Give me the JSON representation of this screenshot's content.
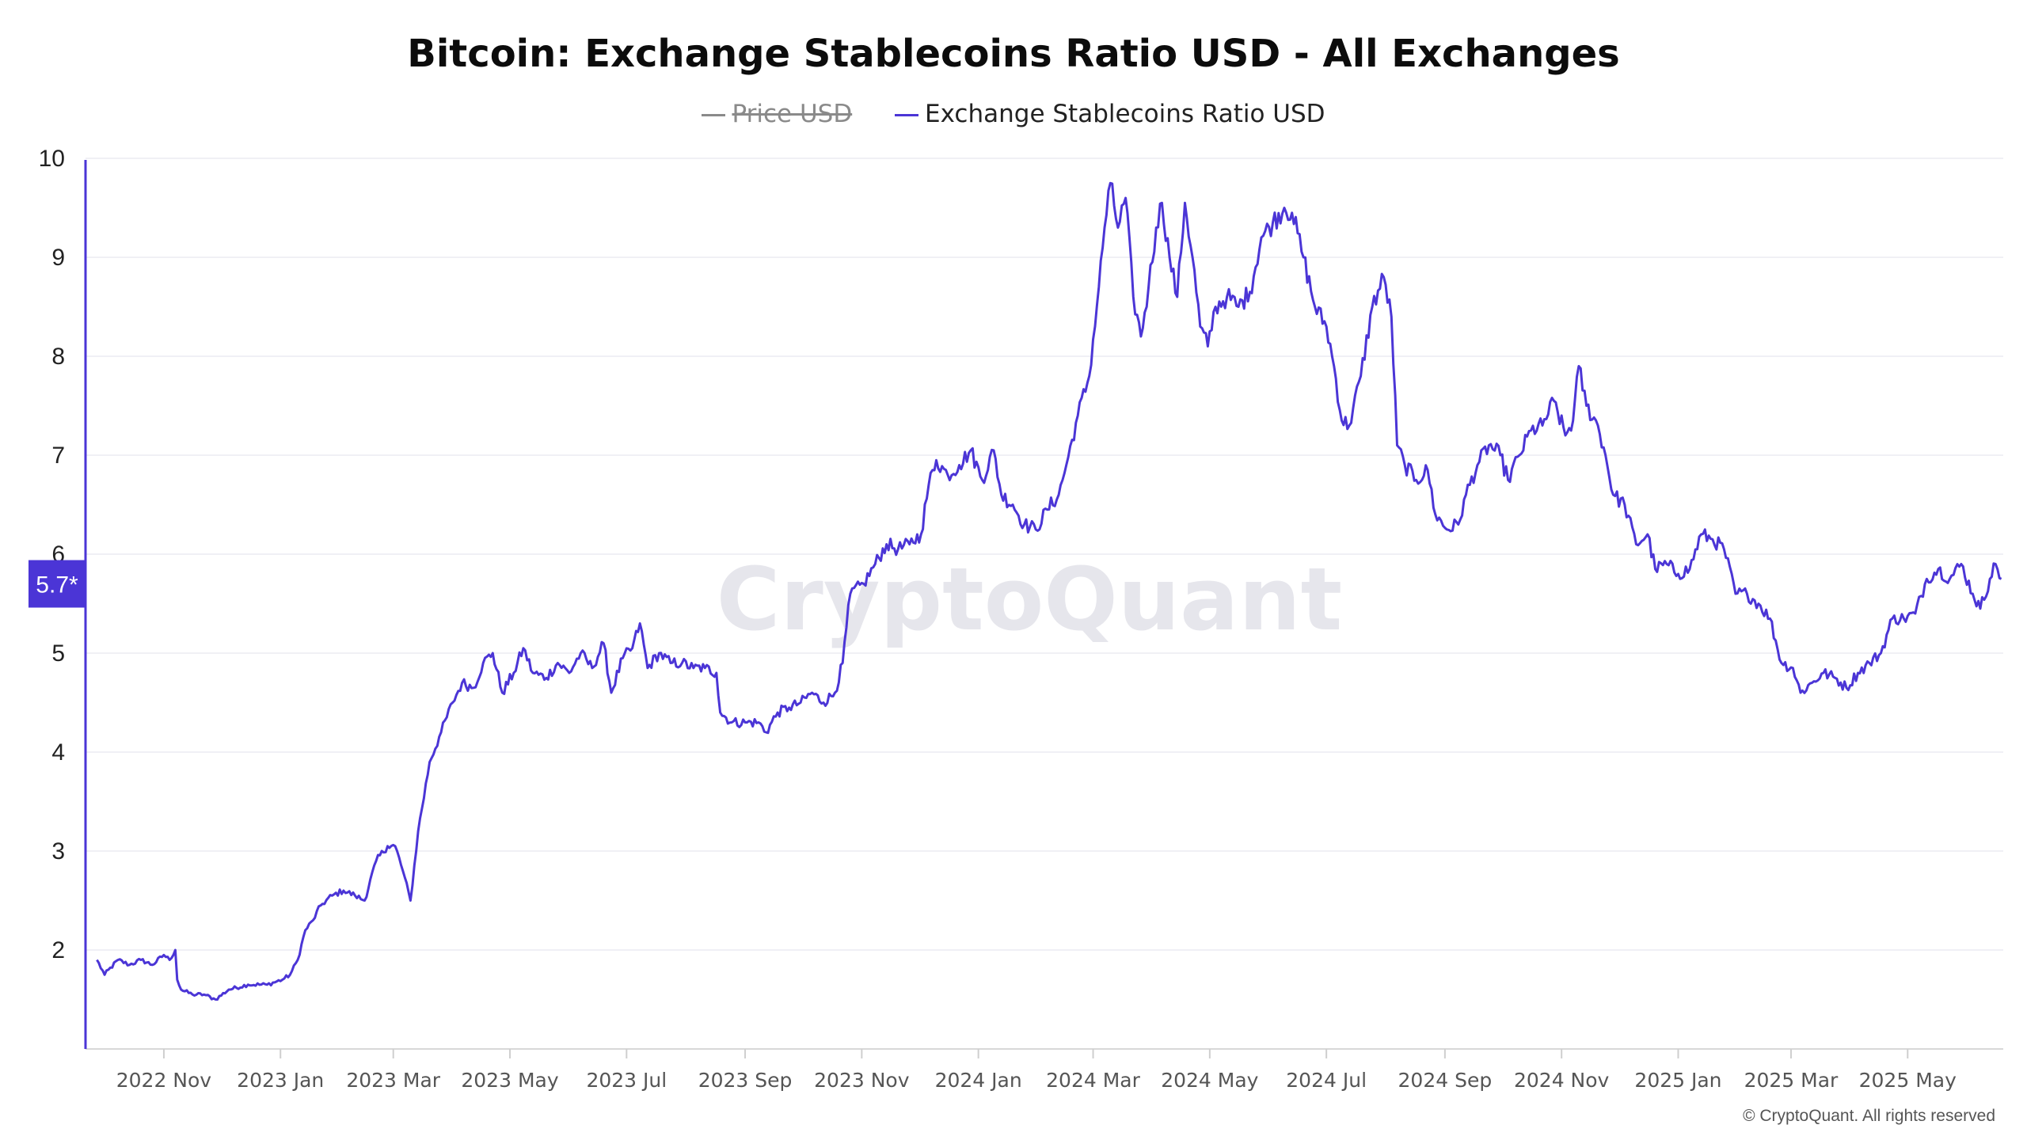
{
  "header": {
    "title": "Bitcoin: Exchange Stablecoins Ratio USD - All Exchanges"
  },
  "legend": [
    {
      "label": "Price USD",
      "color": "#8a8a8a",
      "hidden": true
    },
    {
      "label": "Exchange Stablecoins Ratio USD",
      "color": "#4b35d6",
      "hidden": false
    }
  ],
  "badge": {
    "value_label": "5.7*",
    "value": 5.7,
    "color": "#4b35d6"
  },
  "watermark": "CryptoQuant",
  "footer": {
    "copyright": "© CryptoQuant. All rights reserved"
  },
  "chart_data": {
    "type": "line",
    "title": "Bitcoin: Exchange Stablecoins Ratio USD - All Exchanges",
    "xlabel": "",
    "ylabel": "",
    "ylim": [
      1,
      10
    ],
    "yticks": [
      2,
      3,
      4,
      5,
      6,
      7,
      8,
      9,
      10
    ],
    "xlim": [
      "2022-09-26",
      "2025-06-20"
    ],
    "x_tick_labels": [
      "2022 Nov",
      "2023 Jan",
      "2023 Mar",
      "2023 May",
      "2023 Jul",
      "2023 Sep",
      "2023 Nov",
      "2024 Jan",
      "2024 Mar",
      "2024 May",
      "2024 Jul",
      "2024 Sep",
      "2024 Nov",
      "2025 Jan",
      "2025 Mar",
      "2025 May"
    ],
    "x_tick_dates": [
      "2022-11-01",
      "2023-01-01",
      "2023-03-01",
      "2023-05-01",
      "2023-07-01",
      "2023-09-01",
      "2023-11-01",
      "2024-01-01",
      "2024-03-01",
      "2024-05-01",
      "2024-07-01",
      "2024-09-01",
      "2024-11-01",
      "2025-01-01",
      "2025-03-01",
      "2025-05-01"
    ],
    "grid": true,
    "legend_position": "top-center",
    "series": [
      {
        "name": "Exchange Stablecoins Ratio USD",
        "color": "#4b35d6",
        "points": [
          [
            "2022-09-27",
            1.9
          ],
          [
            "2022-10-01",
            1.75
          ],
          [
            "2022-10-08",
            1.9
          ],
          [
            "2022-10-14",
            1.85
          ],
          [
            "2022-10-20",
            1.9
          ],
          [
            "2022-10-26",
            1.85
          ],
          [
            "2022-11-01",
            1.95
          ],
          [
            "2022-11-04",
            1.9
          ],
          [
            "2022-11-07",
            2.0
          ],
          [
            "2022-11-08",
            1.7
          ],
          [
            "2022-11-10",
            1.6
          ],
          [
            "2022-11-16",
            1.55
          ],
          [
            "2022-11-22",
            1.55
          ],
          [
            "2022-11-28",
            1.5
          ],
          [
            "2022-12-05",
            1.6
          ],
          [
            "2022-12-15",
            1.65
          ],
          [
            "2022-12-25",
            1.65
          ],
          [
            "2023-01-02",
            1.7
          ],
          [
            "2023-01-06",
            1.75
          ],
          [
            "2023-01-10",
            1.9
          ],
          [
            "2023-01-14",
            2.2
          ],
          [
            "2023-01-18",
            2.3
          ],
          [
            "2023-01-22",
            2.45
          ],
          [
            "2023-01-28",
            2.55
          ],
          [
            "2023-02-03",
            2.6
          ],
          [
            "2023-02-09",
            2.55
          ],
          [
            "2023-02-14",
            2.5
          ],
          [
            "2023-02-20",
            2.9
          ],
          [
            "2023-02-26",
            3.05
          ],
          [
            "2023-03-02",
            3.05
          ],
          [
            "2023-03-06",
            2.8
          ],
          [
            "2023-03-10",
            2.5
          ],
          [
            "2023-03-14",
            3.2
          ],
          [
            "2023-03-20",
            3.9
          ],
          [
            "2023-03-26",
            4.2
          ],
          [
            "2023-04-01",
            4.5
          ],
          [
            "2023-04-06",
            4.7
          ],
          [
            "2023-04-12",
            4.65
          ],
          [
            "2023-04-17",
            4.9
          ],
          [
            "2023-04-22",
            5.0
          ],
          [
            "2023-04-27",
            4.6
          ],
          [
            "2023-05-03",
            4.8
          ],
          [
            "2023-05-08",
            5.05
          ],
          [
            "2023-05-13",
            4.8
          ],
          [
            "2023-05-20",
            4.75
          ],
          [
            "2023-05-26",
            4.9
          ],
          [
            "2023-06-01",
            4.8
          ],
          [
            "2023-06-07",
            5.0
          ],
          [
            "2023-06-13",
            4.85
          ],
          [
            "2023-06-19",
            5.1
          ],
          [
            "2023-06-23",
            4.6
          ],
          [
            "2023-06-29",
            4.95
          ],
          [
            "2023-07-04",
            5.05
          ],
          [
            "2023-07-08",
            5.3
          ],
          [
            "2023-07-12",
            4.85
          ],
          [
            "2023-07-18",
            5.0
          ],
          [
            "2023-07-24",
            4.9
          ],
          [
            "2023-07-30",
            4.9
          ],
          [
            "2023-08-05",
            4.85
          ],
          [
            "2023-08-11",
            4.85
          ],
          [
            "2023-08-17",
            4.8
          ],
          [
            "2023-08-19",
            4.4
          ],
          [
            "2023-08-25",
            4.3
          ],
          [
            "2023-09-02",
            4.3
          ],
          [
            "2023-09-08",
            4.3
          ],
          [
            "2023-09-12",
            4.2
          ],
          [
            "2023-09-18",
            4.4
          ],
          [
            "2023-09-24",
            4.45
          ],
          [
            "2023-09-30",
            4.5
          ],
          [
            "2023-10-06",
            4.6
          ],
          [
            "2023-10-12",
            4.5
          ],
          [
            "2023-10-18",
            4.6
          ],
          [
            "2023-10-22",
            4.9
          ],
          [
            "2023-10-26",
            5.6
          ],
          [
            "2023-11-02",
            5.7
          ],
          [
            "2023-11-08",
            5.9
          ],
          [
            "2023-11-14",
            6.1
          ],
          [
            "2023-11-20",
            6.05
          ],
          [
            "2023-11-26",
            6.1
          ],
          [
            "2023-12-02",
            6.2
          ],
          [
            "2023-12-06",
            6.7
          ],
          [
            "2023-12-10",
            6.95
          ],
          [
            "2023-12-16",
            6.8
          ],
          [
            "2023-12-22",
            6.9
          ],
          [
            "2023-12-28",
            7.05
          ],
          [
            "2024-01-03",
            6.75
          ],
          [
            "2024-01-09",
            7.05
          ],
          [
            "2024-01-13",
            6.6
          ],
          [
            "2024-01-19",
            6.5
          ],
          [
            "2024-01-25",
            6.3
          ],
          [
            "2024-01-31",
            6.25
          ],
          [
            "2024-02-06",
            6.45
          ],
          [
            "2024-02-12",
            6.6
          ],
          [
            "2024-02-16",
            6.9
          ],
          [
            "2024-02-22",
            7.4
          ],
          [
            "2024-02-28",
            7.8
          ],
          [
            "2024-03-04",
            8.7
          ],
          [
            "2024-03-07",
            9.3
          ],
          [
            "2024-03-10",
            9.75
          ],
          [
            "2024-03-14",
            9.3
          ],
          [
            "2024-03-18",
            9.6
          ],
          [
            "2024-03-22",
            8.6
          ],
          [
            "2024-03-26",
            8.2
          ],
          [
            "2024-03-30",
            8.7
          ],
          [
            "2024-04-03",
            9.3
          ],
          [
            "2024-04-06",
            9.55
          ],
          [
            "2024-04-10",
            9.0
          ],
          [
            "2024-04-14",
            8.6
          ],
          [
            "2024-04-18",
            9.55
          ],
          [
            "2024-04-22",
            9.0
          ],
          [
            "2024-04-26",
            8.3
          ],
          [
            "2024-04-30",
            8.1
          ],
          [
            "2024-05-04",
            8.5
          ],
          [
            "2024-05-10",
            8.6
          ],
          [
            "2024-05-16",
            8.5
          ],
          [
            "2024-05-22",
            8.65
          ],
          [
            "2024-05-28",
            9.2
          ],
          [
            "2024-06-03",
            9.35
          ],
          [
            "2024-06-09",
            9.5
          ],
          [
            "2024-06-13",
            9.45
          ],
          [
            "2024-06-19",
            9.0
          ],
          [
            "2024-06-25",
            8.5
          ],
          [
            "2024-07-01",
            8.3
          ],
          [
            "2024-07-05",
            7.9
          ],
          [
            "2024-07-09",
            7.35
          ],
          [
            "2024-07-13",
            7.3
          ],
          [
            "2024-07-19",
            7.8
          ],
          [
            "2024-07-25",
            8.5
          ],
          [
            "2024-07-31",
            8.8
          ],
          [
            "2024-08-04",
            8.4
          ],
          [
            "2024-08-07",
            7.1
          ],
          [
            "2024-08-11",
            6.9
          ],
          [
            "2024-08-17",
            6.75
          ],
          [
            "2024-08-23",
            6.85
          ],
          [
            "2024-08-27",
            6.4
          ],
          [
            "2024-09-02",
            6.25
          ],
          [
            "2024-09-08",
            6.3
          ],
          [
            "2024-09-12",
            6.6
          ],
          [
            "2024-09-18",
            6.9
          ],
          [
            "2024-09-24",
            7.1
          ],
          [
            "2024-09-30",
            7.0
          ],
          [
            "2024-10-04",
            6.75
          ],
          [
            "2024-10-10",
            7.0
          ],
          [
            "2024-10-16",
            7.25
          ],
          [
            "2024-10-22",
            7.3
          ],
          [
            "2024-10-28",
            7.55
          ],
          [
            "2024-11-03",
            7.2
          ],
          [
            "2024-11-07",
            7.35
          ],
          [
            "2024-11-10",
            7.9
          ],
          [
            "2024-11-14",
            7.5
          ],
          [
            "2024-11-20",
            7.3
          ],
          [
            "2024-11-24",
            7.0
          ],
          [
            "2024-11-28",
            6.6
          ],
          [
            "2024-12-04",
            6.5
          ],
          [
            "2024-12-10",
            6.1
          ],
          [
            "2024-12-16",
            6.2
          ],
          [
            "2024-12-20",
            5.85
          ],
          [
            "2024-12-26",
            5.9
          ],
          [
            "2025-01-01",
            5.8
          ],
          [
            "2025-01-07",
            5.85
          ],
          [
            "2025-01-13",
            6.2
          ],
          [
            "2025-01-19",
            6.15
          ],
          [
            "2025-01-25",
            6.05
          ],
          [
            "2025-01-31",
            5.6
          ],
          [
            "2025-02-06",
            5.6
          ],
          [
            "2025-02-12",
            5.5
          ],
          [
            "2025-02-18",
            5.35
          ],
          [
            "2025-02-24",
            4.9
          ],
          [
            "2025-03-02",
            4.85
          ],
          [
            "2025-03-06",
            4.6
          ],
          [
            "2025-03-12",
            4.7
          ],
          [
            "2025-03-18",
            4.8
          ],
          [
            "2025-03-24",
            4.75
          ],
          [
            "2025-03-30",
            4.65
          ],
          [
            "2025-04-05",
            4.8
          ],
          [
            "2025-04-11",
            4.9
          ],
          [
            "2025-04-17",
            5.0
          ],
          [
            "2025-04-23",
            5.35
          ],
          [
            "2025-04-29",
            5.35
          ],
          [
            "2025-05-05",
            5.4
          ],
          [
            "2025-05-11",
            5.75
          ],
          [
            "2025-05-17",
            5.85
          ],
          [
            "2025-05-23",
            5.75
          ],
          [
            "2025-05-29",
            5.9
          ],
          [
            "2025-06-04",
            5.6
          ],
          [
            "2025-06-08",
            5.45
          ],
          [
            "2025-06-13",
            5.75
          ],
          [
            "2025-06-16",
            5.9
          ],
          [
            "2025-06-19",
            5.75
          ]
        ]
      }
    ]
  }
}
